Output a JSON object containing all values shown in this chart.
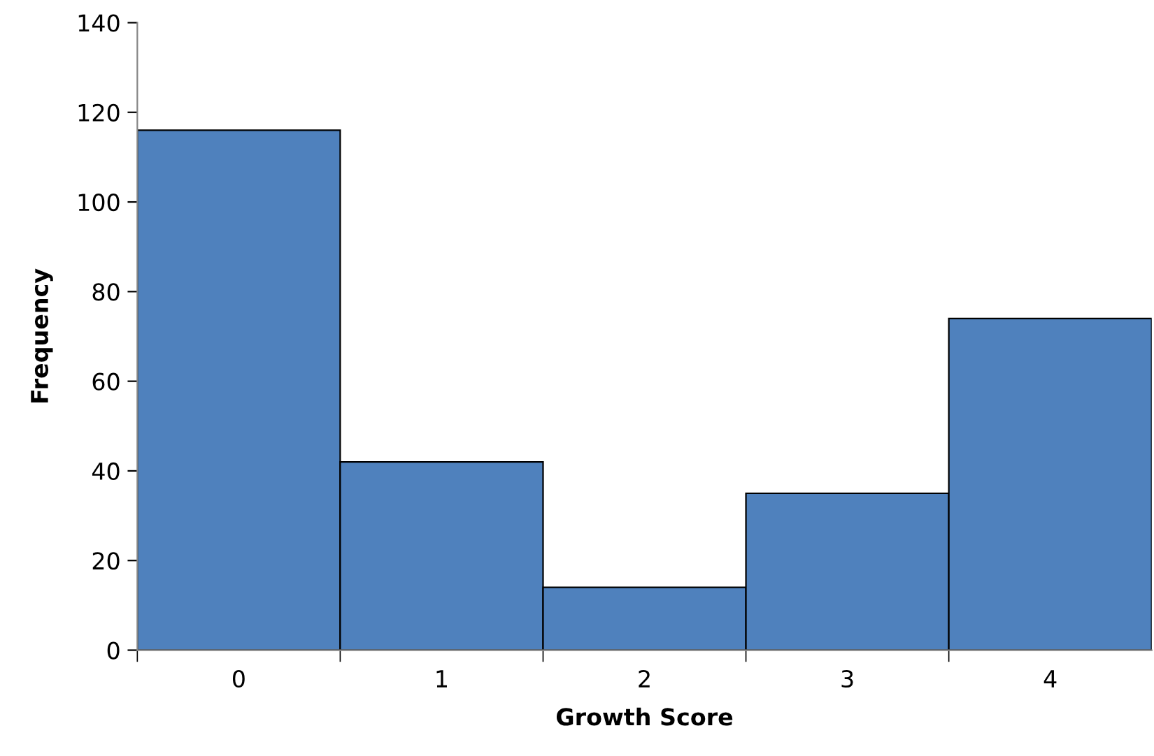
{
  "chart_data": {
    "type": "bar",
    "xlabel": "Growth Score",
    "ylabel": "Frequency",
    "categories": [
      "0",
      "1",
      "2",
      "3",
      "4"
    ],
    "values": [
      116,
      42,
      14,
      35,
      74
    ],
    "color": "#4f81bd",
    "ylim": [
      0,
      140
    ],
    "yticks": [
      0,
      20,
      40,
      60,
      80,
      100,
      120,
      140
    ],
    "grid": false,
    "legend": false
  }
}
